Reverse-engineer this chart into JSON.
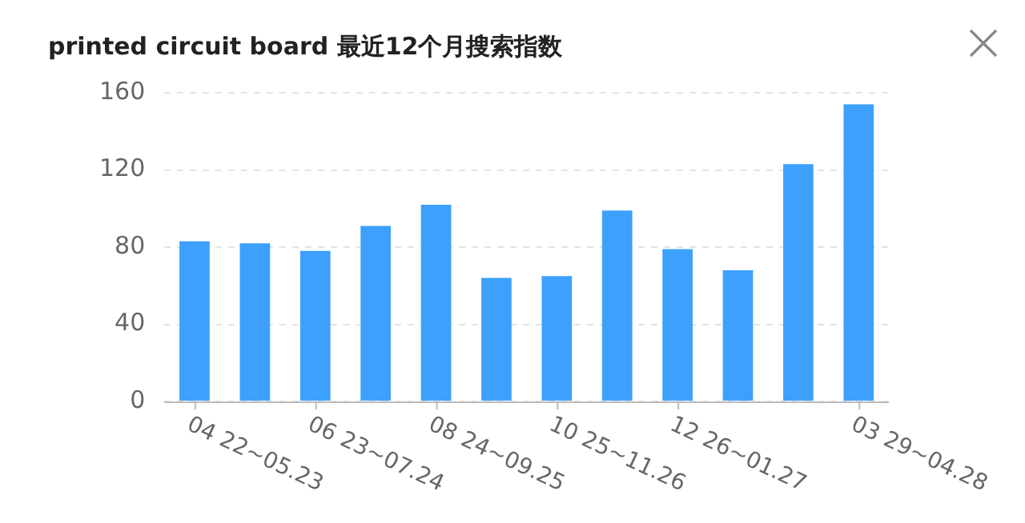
{
  "chart_data": {
    "type": "bar",
    "title": "printed circuit board 最近12个月搜索指数",
    "categories": [
      "04 22~05.23",
      null,
      "06 23~07.24",
      null,
      "08 24~09.25",
      null,
      "10 25~11.26",
      null,
      "12 26~01.27",
      null,
      null,
      "03 29~04.28"
    ],
    "values": [
      83,
      82,
      78,
      91,
      102,
      64,
      65,
      99,
      79,
      68,
      123,
      154
    ],
    "color": "#3ca0fc",
    "ylim": [
      0,
      160
    ],
    "yticks": [
      0,
      40,
      80,
      120,
      160
    ],
    "grid": "y",
    "legend": false
  }
}
